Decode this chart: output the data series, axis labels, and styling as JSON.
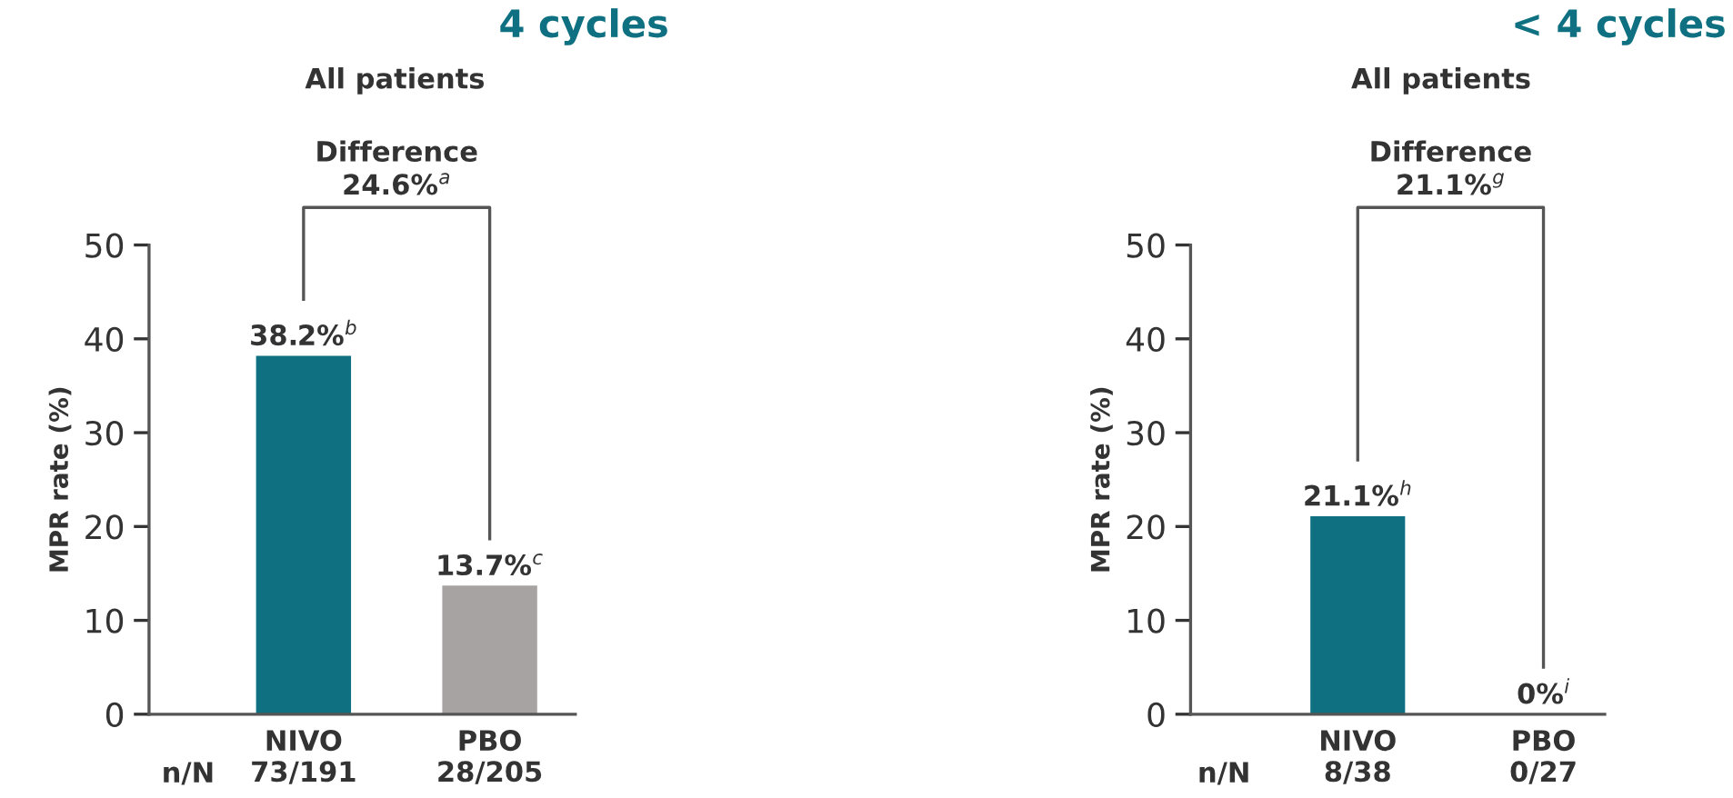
{
  "chart_data": [
    {
      "type": "bar",
      "title": "4 cycles",
      "subtitle": "All patients",
      "ylabel": "MPR rate (%)",
      "categories": [
        "NIVO\n73/191",
        "PBO\n28/205"
      ],
      "values": [
        38.2,
        13.7
      ],
      "colors": [
        "#0e7080",
        "#a8a3a3"
      ],
      "value_labels": [
        "38.2%$^{b}$",
        "13.7%$^{c}$"
      ],
      "ylim": [
        0,
        50
      ],
      "yticks": [
        0,
        10,
        20,
        30,
        40,
        50
      ],
      "grid": false,
      "legend": false,
      "annotations": [
        "n/N",
        "Difference\n24.6%$^{a}$"
      ]
    },
    {
      "type": "bar",
      "title": "< 4 cycles",
      "subtitle": "All patients",
      "ylabel": "MPR rate (%)",
      "categories": [
        "NIVO\n8/38",
        "PBO\n0/27"
      ],
      "values": [
        21.1,
        0
      ],
      "colors": [
        "#0e7080",
        "#a8a3a3"
      ],
      "value_labels": [
        "21.1%$^{h}$",
        "0%$^{i}$"
      ],
      "ylim": [
        0,
        50
      ],
      "yticks": [
        0,
        10,
        20,
        30,
        40,
        50
      ],
      "grid": false,
      "legend": false,
      "annotations": [
        "n/N",
        "Difference\n21.1%$^{g}$"
      ]
    }
  ]
}
